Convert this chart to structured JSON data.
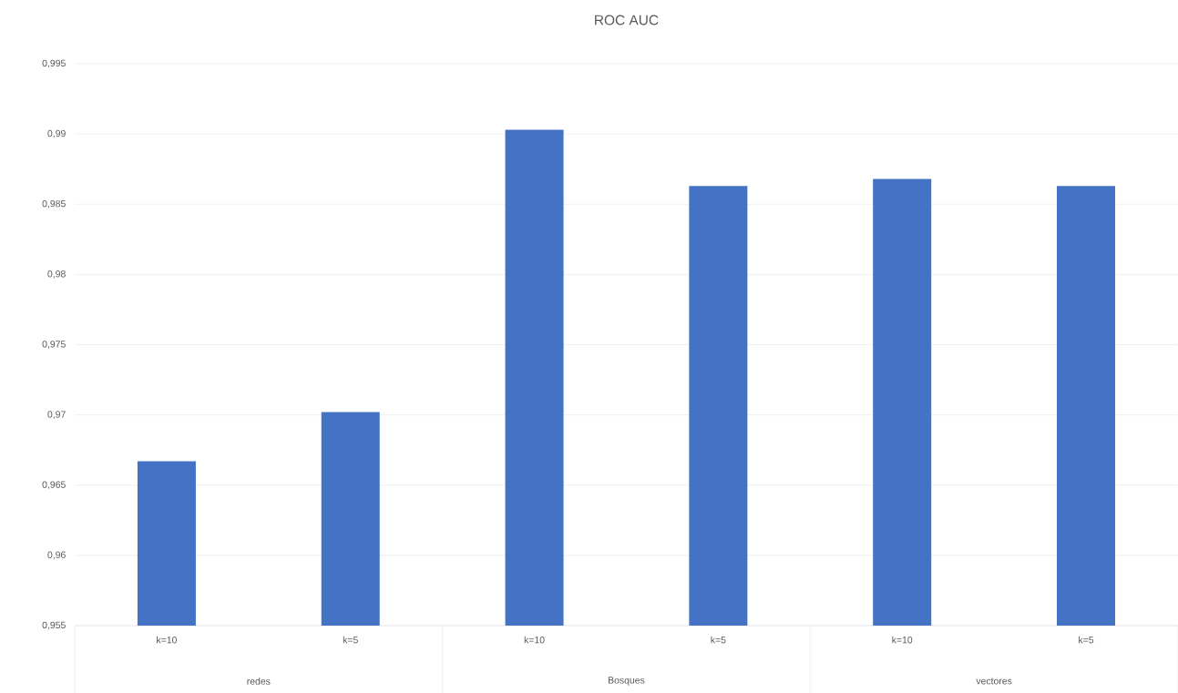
{
  "chart_data": {
    "type": "bar",
    "title": "ROC AUC",
    "categories": [
      "k=10",
      "k=5",
      "k=10",
      "k=5",
      "k=10",
      "k=5"
    ],
    "values": [
      0.9667,
      0.9702,
      0.9903,
      0.9863,
      0.9868,
      0.9863
    ],
    "color": "#4472c4",
    "ylim": [
      0.955,
      0.995
    ],
    "yticks": [
      {
        "value": 0.955,
        "label": "0,955"
      },
      {
        "value": 0.96,
        "label": "0,96"
      },
      {
        "value": 0.965,
        "label": "0,965"
      },
      {
        "value": 0.97,
        "label": "0,97"
      },
      {
        "value": 0.975,
        "label": "0,975"
      },
      {
        "value": 0.98,
        "label": "0,98"
      },
      {
        "value": 0.985,
        "label": "0,985"
      },
      {
        "value": 0.99,
        "label": "0,99"
      },
      {
        "value": 0.995,
        "label": "0,995"
      }
    ],
    "grid": "y",
    "annotations": [
      "redes",
      "Bosques",
      "vectores"
    ]
  }
}
